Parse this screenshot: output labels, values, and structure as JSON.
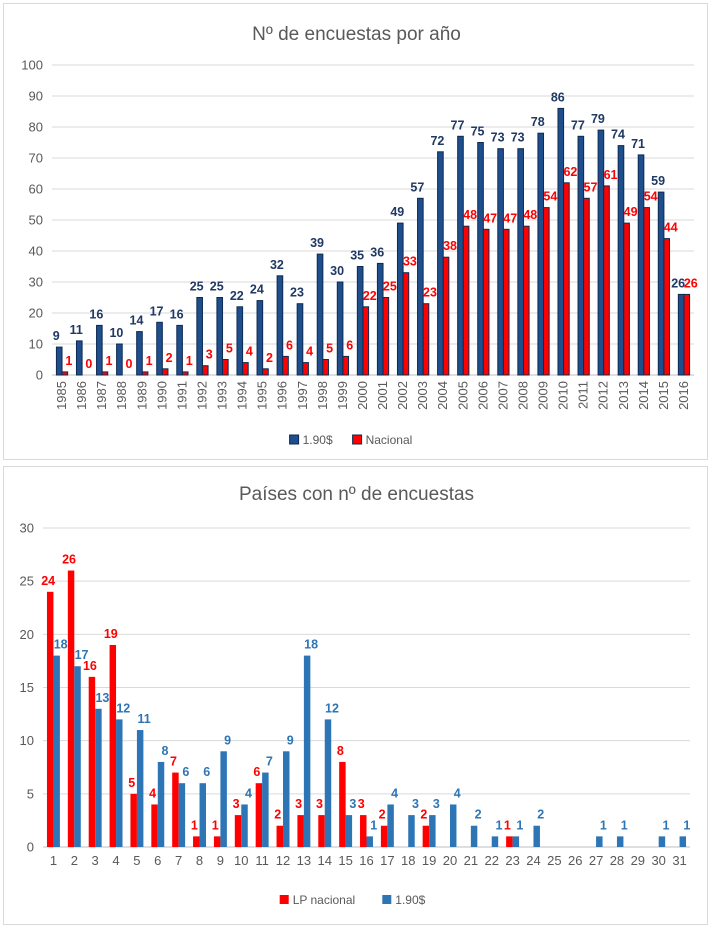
{
  "chart_data": [
    {
      "type": "bar",
      "title": "Nº de encuestas por año",
      "categories": [
        "1985",
        "1986",
        "1987",
        "1988",
        "1989",
        "1990",
        "1991",
        "1992",
        "1993",
        "1994",
        "1995",
        "1996",
        "1997",
        "1998",
        "1999",
        "2000",
        "2001",
        "2002",
        "2003",
        "2004",
        "2005",
        "2006",
        "2007",
        "2008",
        "2009",
        "2010",
        "2011",
        "2012",
        "2013",
        "2014",
        "2015",
        "2016"
      ],
      "series": [
        {
          "name": "1.90$",
          "color": "#1f4e8c",
          "label_color": "#1f3864",
          "values": [
            9,
            11,
            16,
            10,
            14,
            17,
            16,
            25,
            25,
            22,
            24,
            32,
            23,
            39,
            30,
            35,
            36,
            49,
            57,
            72,
            77,
            75,
            73,
            73,
            78,
            86,
            77,
            79,
            74,
            71,
            59,
            26
          ]
        },
        {
          "name": "Nacional",
          "color": "#ff0000",
          "label_color": "#ff0000",
          "values": [
            1,
            0,
            1,
            0,
            1,
            2,
            1,
            3,
            5,
            4,
            2,
            6,
            4,
            5,
            6,
            22,
            25,
            33,
            23,
            38,
            48,
            47,
            47,
            48,
            54,
            62,
            57,
            61,
            49,
            54,
            44,
            26
          ]
        }
      ],
      "ylim": [
        0,
        100
      ],
      "yticks": [
        0,
        10,
        20,
        30,
        40,
        50,
        60,
        70,
        80,
        90,
        100
      ],
      "legend_position": "bottom",
      "xlabel": "",
      "ylabel": ""
    },
    {
      "type": "bar",
      "title": "Países con nº de encuestas",
      "categories": [
        "1",
        "2",
        "3",
        "4",
        "5",
        "6",
        "7",
        "8",
        "9",
        "10",
        "11",
        "12",
        "13",
        "14",
        "15",
        "16",
        "17",
        "18",
        "19",
        "20",
        "21",
        "22",
        "23",
        "24",
        "25",
        "26",
        "27",
        "28",
        "29",
        "30",
        "31"
      ],
      "series": [
        {
          "name": "LP nacional",
          "color": "#ff0000",
          "label_color": "#ff0000",
          "values": [
            24,
            26,
            16,
            19,
            5,
            4,
            7,
            1,
            1,
            3,
            6,
            2,
            3,
            3,
            8,
            3,
            2,
            null,
            2,
            null,
            null,
            null,
            1,
            null,
            null,
            null,
            null,
            null,
            null,
            null,
            null
          ]
        },
        {
          "name": "1.90$",
          "color": "#2e75b6",
          "label_color": "#2e75b6",
          "values": [
            18,
            17,
            13,
            12,
            11,
            8,
            6,
            6,
            9,
            4,
            7,
            9,
            18,
            12,
            3,
            1,
            4,
            3,
            3,
            4,
            2,
            1,
            1,
            2,
            null,
            null,
            1,
            1,
            null,
            1,
            1
          ]
        }
      ],
      "ylim": [
        0,
        30
      ],
      "yticks": [
        0,
        5,
        10,
        15,
        20,
        25,
        30
      ],
      "legend_position": "bottom",
      "xlabel": "",
      "ylabel": ""
    }
  ]
}
